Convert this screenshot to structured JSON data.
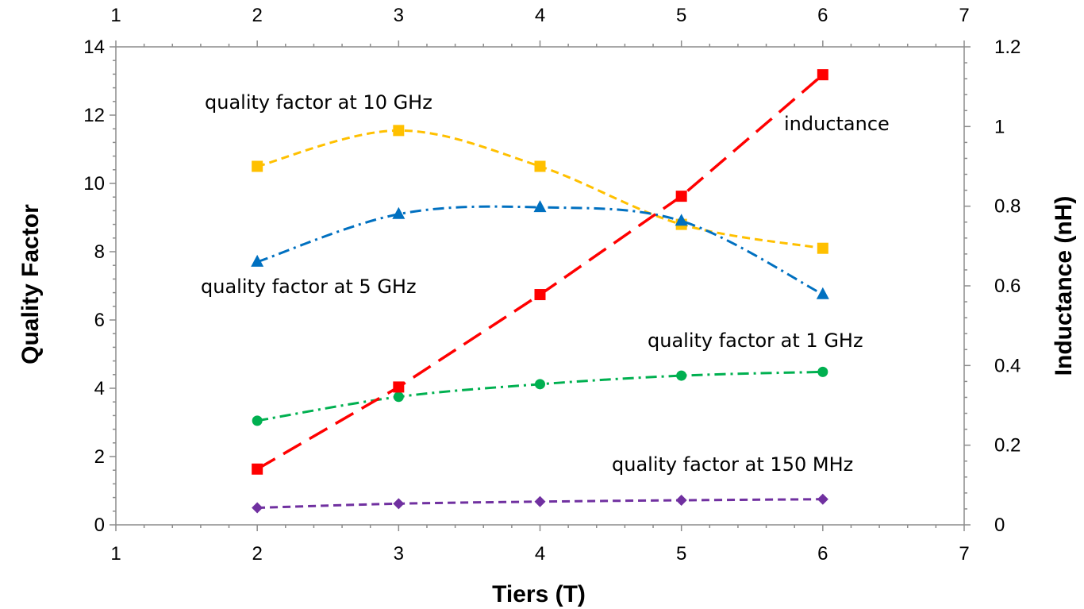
{
  "chart_data": {
    "type": "line",
    "xlabel": "Tiers (T)",
    "ylabel": "Quality Factor",
    "y2label": "Inductance (nH)",
    "xlim": [
      1,
      7
    ],
    "xticks": [
      1,
      2,
      3,
      4,
      5,
      6,
      7
    ],
    "ylim": [
      0,
      14
    ],
    "yticks": [
      0,
      2,
      4,
      6,
      8,
      10,
      12,
      14
    ],
    "y2lim": [
      0,
      1.2
    ],
    "y2ticks": [
      0,
      0.2,
      0.4,
      0.6,
      0.8,
      1,
      1.2
    ],
    "y2tick_labels": [
      "0",
      "0.2",
      "0.4",
      "0.6",
      "0.8",
      "1",
      "1.2"
    ],
    "x": [
      2,
      3,
      4,
      5,
      6
    ],
    "series": [
      {
        "name": "quality factor at 10 GHz",
        "axis": "left",
        "color": "#ffc000",
        "marker": "square",
        "dash": "dashed",
        "smooth": true,
        "values": [
          10.5,
          11.55,
          10.5,
          8.8,
          8.1
        ]
      },
      {
        "name": "quality factor at 5 GHz",
        "axis": "left",
        "color": "#0070c0",
        "marker": "triangle",
        "dash": "dash-dot",
        "smooth": true,
        "values": [
          7.7,
          9.1,
          9.3,
          8.9,
          6.75
        ]
      },
      {
        "name": "quality factor at 1 GHz",
        "axis": "left",
        "color": "#00b050",
        "marker": "circle",
        "dash": "dash-dot",
        "smooth": true,
        "values": [
          3.05,
          3.75,
          4.12,
          4.37,
          4.48
        ]
      },
      {
        "name": "quality factor at 150 MHz",
        "axis": "left",
        "color": "#7030a0",
        "marker": "diamond",
        "dash": "dashed",
        "smooth": true,
        "values": [
          0.5,
          0.62,
          0.68,
          0.72,
          0.75
        ]
      },
      {
        "name": "inductance",
        "axis": "right",
        "color": "#ff0000",
        "marker": "square",
        "dash": "long-dash",
        "smooth": false,
        "values": [
          0.14,
          0.346,
          0.578,
          0.825,
          1.13
        ]
      }
    ],
    "annotations": [
      {
        "text": "quality factor at 10 GHz",
        "series": 0
      },
      {
        "text": "inductance",
        "series": 4
      },
      {
        "text": "quality factor at 5 GHz",
        "series": 1
      },
      {
        "text": "quality factor at 1 GHz",
        "series": 2
      },
      {
        "text": "quality factor at 150 MHz",
        "series": 3
      }
    ]
  }
}
